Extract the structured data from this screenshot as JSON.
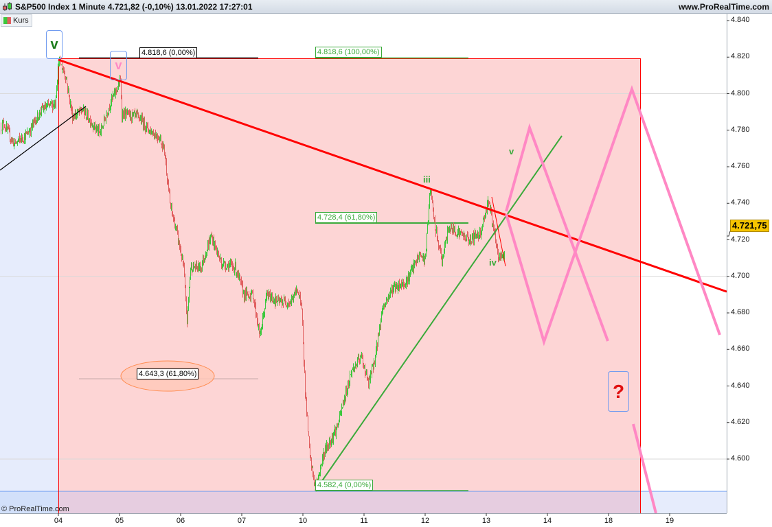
{
  "header": {
    "title": "S&P500 Index 1 Minute 4.721,82 (-0,10%) 13.01.2022 17:27:01",
    "website": "www.ProRealTime.com"
  },
  "legend": {
    "label": "Kurs"
  },
  "copyright": "© ProRealTime.com",
  "colors": {
    "up": "#3cc83c",
    "down": "#e06060",
    "trendline": "#ff0000",
    "projection": "#ff88c4",
    "fib_green": "#3aaa3a",
    "target_zone": "#fdd5d5",
    "price_tag": "#f5c400"
  },
  "chart_data": {
    "type": "candlestick",
    "instrument": "S&P500 Index",
    "interval": "1 Minute",
    "last_price": "4.721,75",
    "x_ticks": [
      "04",
      "05",
      "06",
      "07",
      "10",
      "11",
      "12",
      "13",
      "14",
      "18",
      "19"
    ],
    "y_ticks": [
      "4.840",
      "4.820",
      "4.800",
      "4.780",
      "4.760",
      "4.740",
      "4.720",
      "4.700",
      "4.680",
      "4.660",
      "4.640",
      "4.620",
      "4.600"
    ],
    "ylim": [
      4570,
      4844
    ],
    "grid_levels": [
      4800,
      4700,
      4600
    ],
    "price_path": [
      {
        "day": "03",
        "time": "15:48",
        "price": 4781.8
      },
      {
        "day": "03",
        "time": "16:09",
        "price": 4783.7
      },
      {
        "day": "03",
        "time": "17:15",
        "price": 4772.4
      },
      {
        "day": "03",
        "time": "18:42",
        "price": 4778
      },
      {
        "day": "03",
        "time": "20:10",
        "price": 4791.2
      },
      {
        "day": "03",
        "time": "21:38",
        "price": 4794.9
      },
      {
        "day": "04",
        "time": "15:30",
        "price": 4818.6
      },
      {
        "day": "04",
        "time": "16:14",
        "price": 4810
      },
      {
        "day": "04",
        "time": "16:58",
        "price": 4787.4
      },
      {
        "day": "04",
        "time": "18:03",
        "price": 4791
      },
      {
        "day": "04",
        "time": "19:53",
        "price": 4778
      },
      {
        "day": "04",
        "time": "20:59",
        "price": 4795
      },
      {
        "day": "05",
        "time": "15:35",
        "price": 4807
      },
      {
        "day": "05",
        "time": "15:43",
        "price": 4789
      },
      {
        "day": "05",
        "time": "17:33",
        "price": 4787
      },
      {
        "day": "05",
        "time": "18:38",
        "price": 4780
      },
      {
        "day": "05",
        "time": "19:44",
        "price": 4776
      },
      {
        "day": "05",
        "time": "20:15",
        "price": 4769
      },
      {
        "day": "05",
        "time": "20:51",
        "price": 4739
      },
      {
        "day": "05",
        "time": "21:34",
        "price": 4724
      },
      {
        "day": "06",
        "time": "15:47",
        "price": 4705
      },
      {
        "day": "06",
        "time": "16:09",
        "price": 4675
      },
      {
        "day": "06",
        "time": "16:31",
        "price": 4705
      },
      {
        "day": "06",
        "time": "17:37",
        "price": 4705
      },
      {
        "day": "06",
        "time": "18:43",
        "price": 4722
      },
      {
        "day": "06",
        "time": "19:49",
        "price": 4707
      },
      {
        "day": "06",
        "time": "21:16",
        "price": 4705
      },
      {
        "day": "07",
        "time": "15:43",
        "price": 4690
      },
      {
        "day": "07",
        "time": "16:40",
        "price": 4690
      },
      {
        "day": "07",
        "time": "17:24",
        "price": 4667
      },
      {
        "day": "07",
        "time": "18:08",
        "price": 4690
      },
      {
        "day": "07",
        "time": "19:13",
        "price": 4686
      },
      {
        "day": "07",
        "time": "20:41",
        "price": 4686
      },
      {
        "day": "07",
        "time": "21:25",
        "price": 4693.5
      },
      {
        "day": "07",
        "time": "21:55",
        "price": 4678.5
      },
      {
        "day": "10",
        "time": "15:34",
        "price": 4656
      },
      {
        "day": "10",
        "time": "15:43",
        "price": 4637
      },
      {
        "day": "10",
        "time": "16:14",
        "price": 4600
      },
      {
        "day": "10",
        "time": "16:49",
        "price": 4584
      },
      {
        "day": "10",
        "time": "17:41",
        "price": 4603
      },
      {
        "day": "10",
        "time": "19:09",
        "price": 4618
      },
      {
        "day": "10",
        "time": "20:37",
        "price": 4648
      },
      {
        "day": "10",
        "time": "21:43",
        "price": 4656
      },
      {
        "day": "11",
        "time": "15:56",
        "price": 4641
      },
      {
        "day": "11",
        "time": "16:40",
        "price": 4656
      },
      {
        "day": "11",
        "time": "17:24",
        "price": 4682
      },
      {
        "day": "11",
        "time": "18:30",
        "price": 4693.5
      },
      {
        "day": "11",
        "time": "19:57",
        "price": 4697
      },
      {
        "day": "11",
        "time": "21:24",
        "price": 4712
      },
      {
        "day": "11",
        "time": "21:58",
        "price": 4708.5
      },
      {
        "day": "12",
        "time": "16:01",
        "price": 4748
      },
      {
        "day": "12",
        "time": "16:31",
        "price": 4727
      },
      {
        "day": "12",
        "time": "17:15",
        "price": 4708.5
      },
      {
        "day": "12",
        "time": "17:59",
        "price": 4727
      },
      {
        "day": "12",
        "time": "19:05",
        "price": 4724
      },
      {
        "day": "12",
        "time": "20:10",
        "price": 4720
      },
      {
        "day": "12",
        "time": "21:20",
        "price": 4724
      },
      {
        "day": "13",
        "time": "15:43",
        "price": 4742
      },
      {
        "day": "13",
        "time": "16:18",
        "price": 4724
      },
      {
        "day": "13",
        "time": "16:44",
        "price": 4710
      },
      {
        "day": "13",
        "time": "17:27",
        "price": 4712
      }
    ],
    "annotations": {
      "fib_levels": [
        {
          "label": "4.818,6 (0,00%)",
          "price": 4818.6
        },
        {
          "label": "4.643,3 (61,80%)",
          "price": 4643.3
        },
        {
          "label": "4.818,6 (100,00%)",
          "price": 4818.6
        },
        {
          "label": "4.728,4 (61,80%)",
          "price": 4728.4
        },
        {
          "label": "4.582,4 (0,00%)",
          "price": 4582.4
        }
      ],
      "wave_labels": {
        "major_v": "v",
        "pink_v": "v",
        "iii": "iii",
        "iv": "iv",
        "minor_v": "v",
        "question": "?"
      }
    }
  }
}
